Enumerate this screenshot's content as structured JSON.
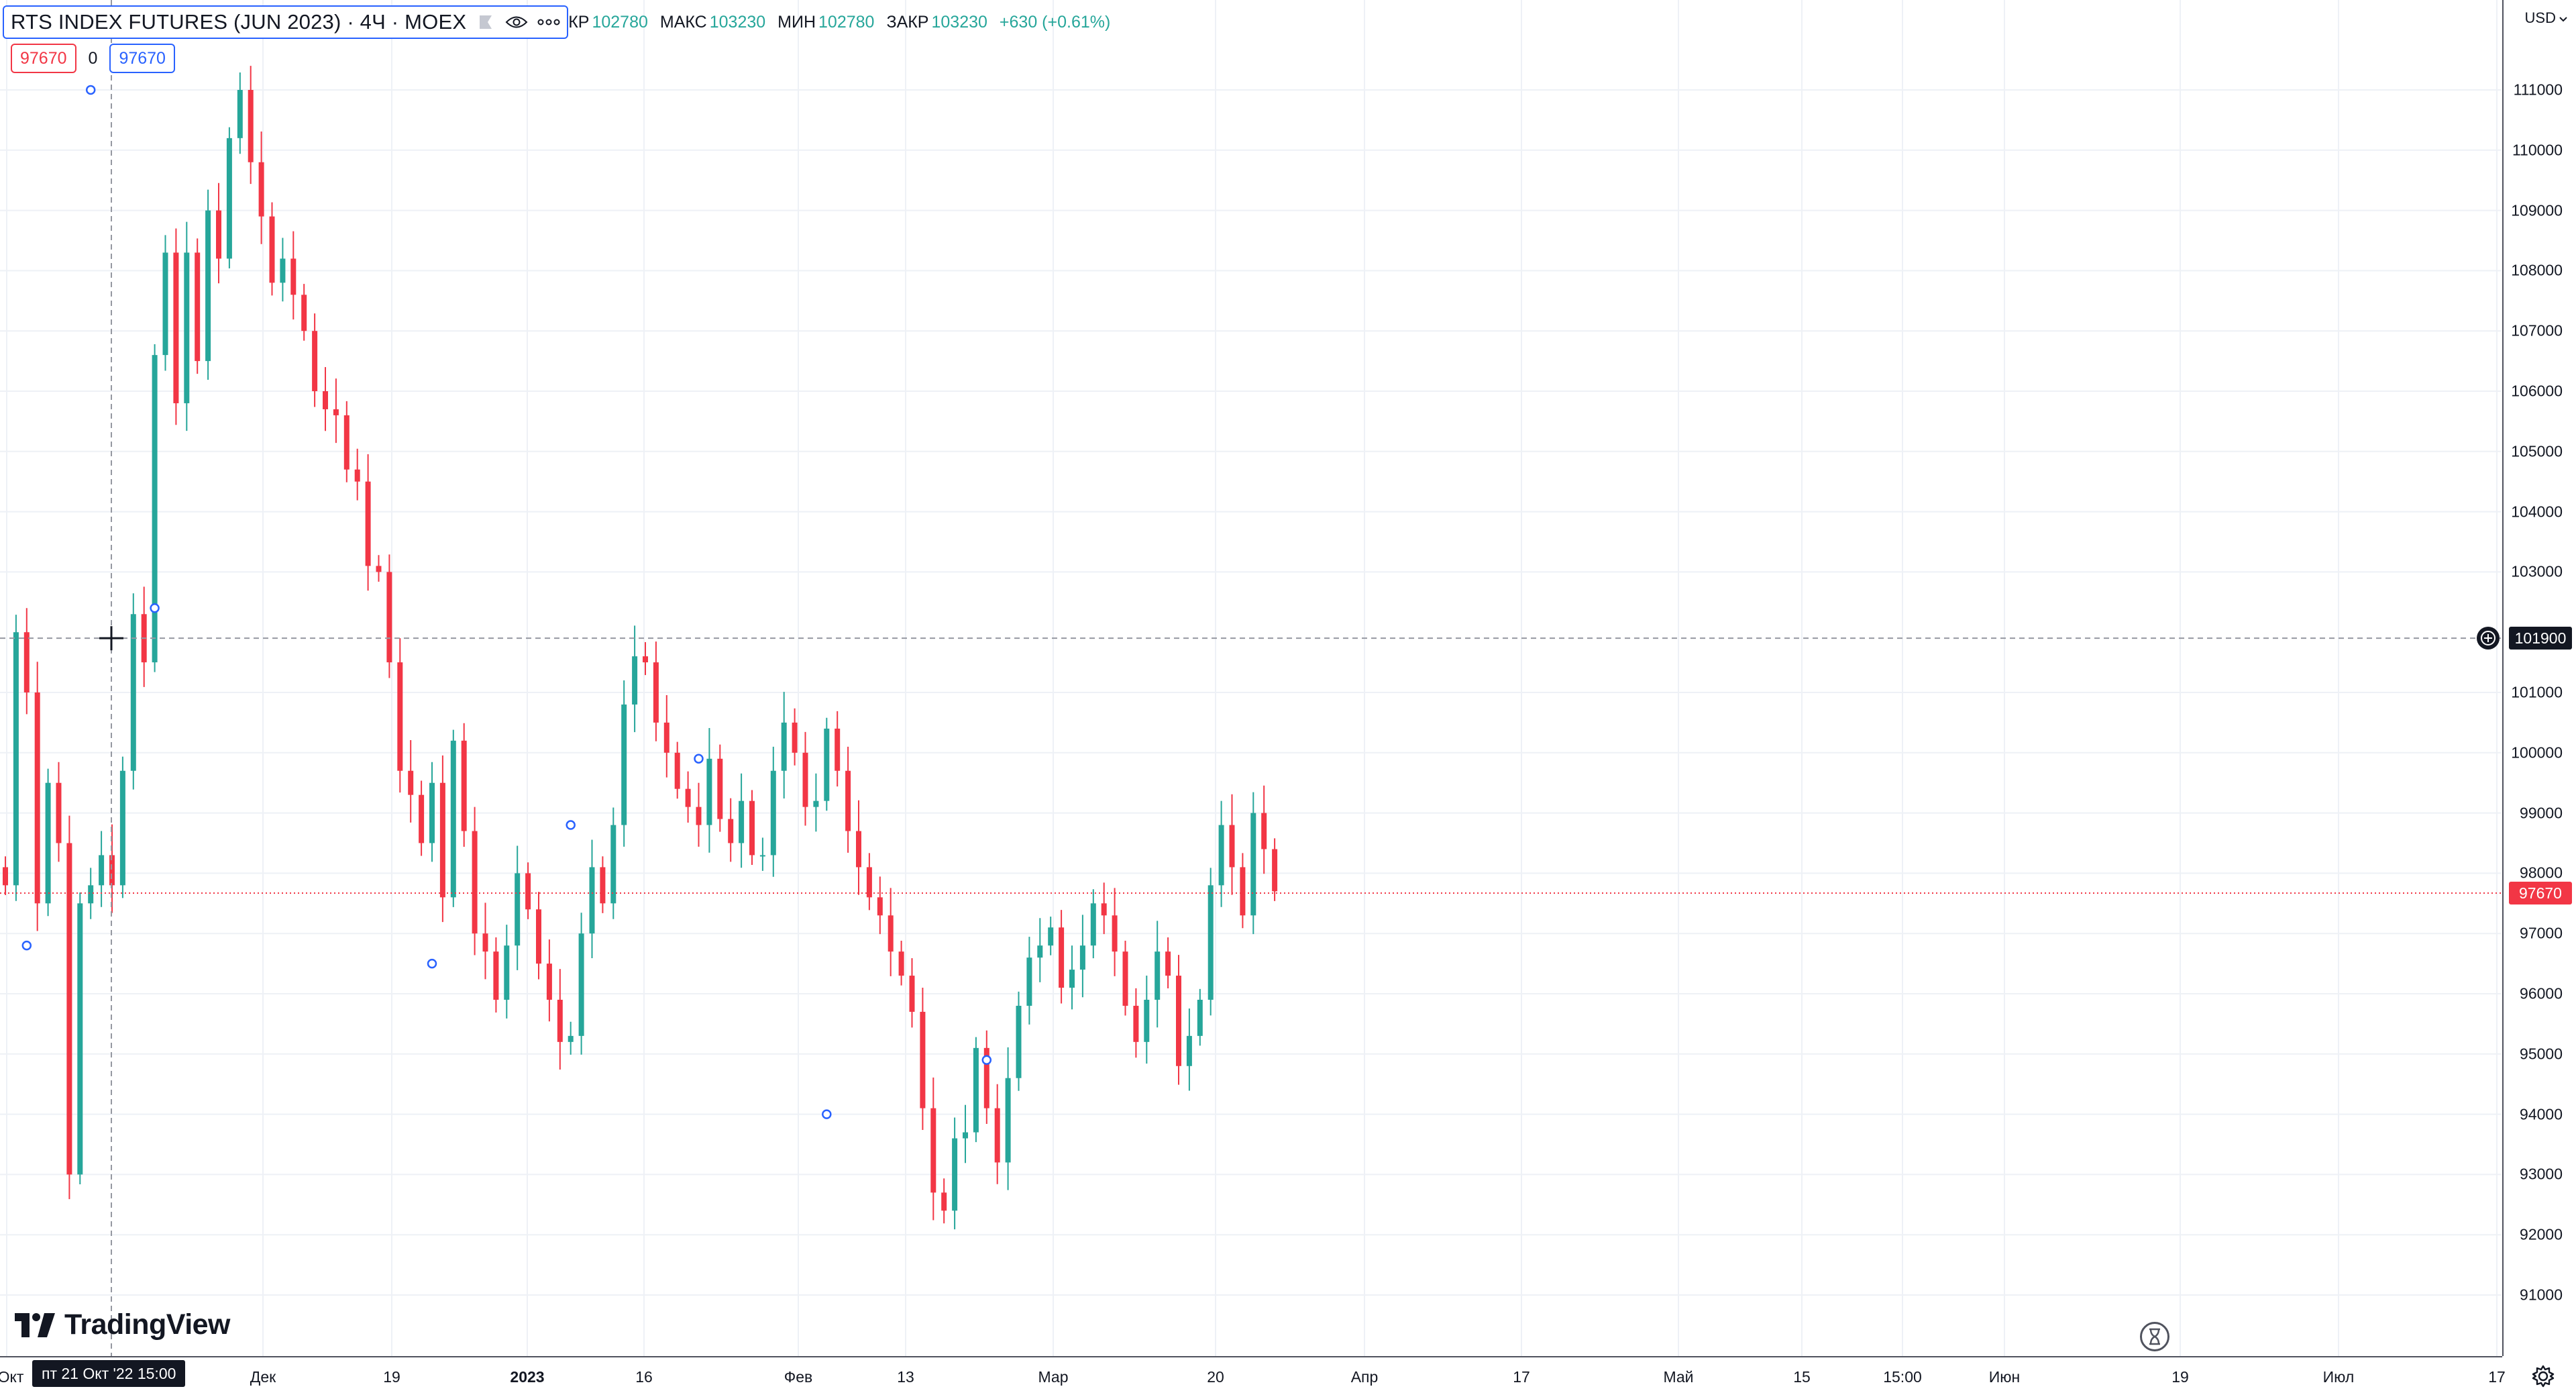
{
  "legend": {
    "symbol": "RTS INDEX FUTURES (JUN 2023) · 4Ч · MOEX",
    "ohlc": [
      {
        "key": "КР",
        "value": "102780"
      },
      {
        "key": "МАКС",
        "value": "103230"
      },
      {
        "key": "МИН",
        "value": "102780"
      },
      {
        "key": "ЗАКР",
        "value": "103230"
      }
    ],
    "change": "+630 (+0.61%)"
  },
  "order": {
    "sell": "97670",
    "spread": "0",
    "buy": "97670"
  },
  "price_scale": {
    "currency": "USD",
    "labels": [
      "111000",
      "110000",
      "109000",
      "108000",
      "107000",
      "106000",
      "105000",
      "104000",
      "103000",
      "101000",
      "100000",
      "99000",
      "98000",
      "97000",
      "96000",
      "95000",
      "94000",
      "93000",
      "92000",
      "91000"
    ],
    "current_price": "97670",
    "crosshair_price": "101900"
  },
  "time_scale": {
    "labels": [
      "Окт",
      "Дек",
      "19",
      "2023",
      "16",
      "Фев",
      "13",
      "Мар",
      "20",
      "Апр",
      "17",
      "Май",
      "15",
      "15:00",
      "Июн",
      "19",
      "Июл",
      "17"
    ],
    "bold_labels": [
      "2023"
    ],
    "crosshair_time": "пт 21 Окт '22   15:00"
  },
  "logo": "TradingView",
  "chart_data": {
    "type": "candlestick",
    "title": "RTS INDEX FUTURES (JUN 2023) · 4Ч · MOEX",
    "ylim": [
      90400,
      112400
    ],
    "up_color": "#26a69a",
    "down_color": "#f23645",
    "series": [
      {
        "name": "RTS INDEX FUTURES (JUN 2023)",
        "points": [
          [
            0,
            97800
          ],
          [
            1,
            102000
          ],
          [
            2,
            101000
          ],
          [
            3,
            97500
          ],
          [
            4,
            99500
          ],
          [
            5,
            98500
          ],
          [
            6,
            93000
          ],
          [
            7,
            97500
          ],
          [
            8,
            97800
          ],
          [
            9,
            98300
          ],
          [
            10,
            97800
          ],
          [
            11,
            99700
          ],
          [
            12,
            102300
          ],
          [
            13,
            101500
          ],
          [
            14,
            106600
          ],
          [
            15,
            108300
          ],
          [
            16,
            105800
          ],
          [
            17,
            108300
          ],
          [
            18,
            106500
          ],
          [
            19,
            109000
          ],
          [
            20,
            108200
          ],
          [
            21,
            110200
          ],
          [
            22,
            111000
          ],
          [
            23,
            109800
          ],
          [
            24,
            108900
          ],
          [
            25,
            107800
          ],
          [
            26,
            108200
          ],
          [
            27,
            107600
          ],
          [
            28,
            107000
          ],
          [
            29,
            106000
          ],
          [
            30,
            105700
          ],
          [
            31,
            105600
          ],
          [
            32,
            104700
          ],
          [
            33,
            104500
          ],
          [
            34,
            103100
          ],
          [
            35,
            103000
          ],
          [
            36,
            101500
          ],
          [
            37,
            99700
          ],
          [
            38,
            99300
          ],
          [
            39,
            98500
          ],
          [
            40,
            99500
          ],
          [
            41,
            97600
          ],
          [
            42,
            100200
          ],
          [
            43,
            98700
          ],
          [
            44,
            97000
          ],
          [
            45,
            96700
          ],
          [
            46,
            95900
          ],
          [
            47,
            96800
          ],
          [
            48,
            98000
          ],
          [
            49,
            97400
          ],
          [
            50,
            96500
          ],
          [
            51,
            95900
          ],
          [
            52,
            95200
          ],
          [
            53,
            95300
          ],
          [
            54,
            97000
          ],
          [
            55,
            98100
          ],
          [
            56,
            97500
          ],
          [
            57,
            98800
          ],
          [
            58,
            100800
          ],
          [
            59,
            101600
          ],
          [
            60,
            101500
          ],
          [
            61,
            100500
          ],
          [
            62,
            100000
          ],
          [
            63,
            99400
          ],
          [
            64,
            99100
          ],
          [
            65,
            98800
          ],
          [
            66,
            99900
          ],
          [
            67,
            98900
          ],
          [
            68,
            98500
          ],
          [
            69,
            99200
          ],
          [
            70,
            98300
          ],
          [
            71,
            98300
          ],
          [
            72,
            99700
          ],
          [
            73,
            100500
          ],
          [
            74,
            100000
          ],
          [
            75,
            99100
          ],
          [
            76,
            99200
          ],
          [
            77,
            100400
          ],
          [
            78,
            99700
          ],
          [
            79,
            98700
          ],
          [
            80,
            98100
          ],
          [
            81,
            97600
          ],
          [
            82,
            97300
          ],
          [
            83,
            96700
          ],
          [
            84,
            96300
          ],
          [
            85,
            95700
          ],
          [
            86,
            94100
          ],
          [
            87,
            92700
          ],
          [
            88,
            92400
          ],
          [
            89,
            93600
          ],
          [
            90,
            93700
          ],
          [
            91,
            95100
          ],
          [
            92,
            94100
          ],
          [
            93,
            93200
          ],
          [
            94,
            94600
          ],
          [
            95,
            95800
          ],
          [
            96,
            96600
          ],
          [
            97,
            96800
          ],
          [
            98,
            97100
          ],
          [
            99,
            96100
          ],
          [
            100,
            96400
          ],
          [
            101,
            96800
          ],
          [
            102,
            97500
          ],
          [
            103,
            97300
          ],
          [
            104,
            96700
          ],
          [
            105,
            95800
          ],
          [
            106,
            95200
          ],
          [
            107,
            95900
          ],
          [
            108,
            96700
          ],
          [
            109,
            96300
          ],
          [
            110,
            94800
          ],
          [
            111,
            95300
          ],
          [
            112,
            95900
          ],
          [
            113,
            97800
          ],
          [
            114,
            98800
          ],
          [
            115,
            98100
          ],
          [
            116,
            97300
          ],
          [
            117,
            99000
          ],
          [
            118,
            98400
          ],
          [
            119,
            97700
          ]
        ]
      }
    ]
  }
}
